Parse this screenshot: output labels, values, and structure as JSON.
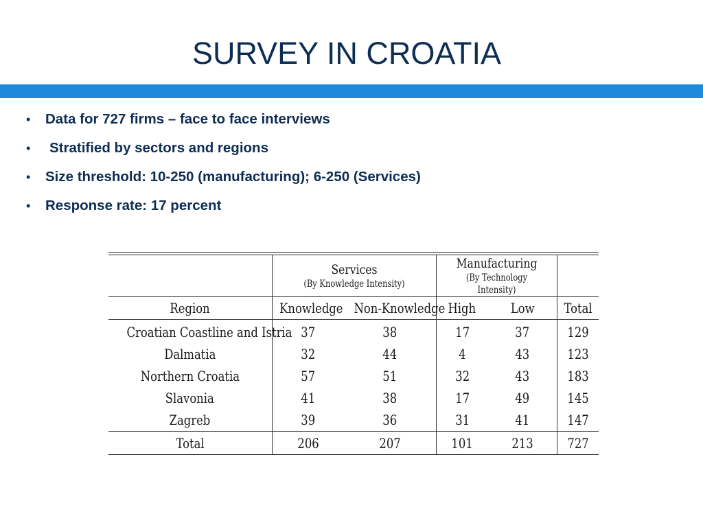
{
  "slide": {
    "title": "SURVEY IN CROATIA",
    "accent_color": "#1e8ad9",
    "title_color": "#0d2d54",
    "bullets": [
      "Data for 727 firms – face to face interviews",
      "Stratified by sectors and regions",
      "Size threshold: 10-250 (manufacturing); 6-250 (Services)",
      "Response rate: 17 percent"
    ]
  },
  "table": {
    "groups": {
      "services": {
        "name": "Services",
        "sub": "(By Knowledge Intensity)"
      },
      "manufacturing": {
        "name": "Manufacturing",
        "sub": "(By Technology Intensity)"
      }
    },
    "headers": [
      "Region",
      "Knowledge",
      "Non-Knowledge",
      "High",
      "Low",
      "Total"
    ],
    "rows": [
      {
        "region": "Croatian Coastline and Istria",
        "knowledge": "37",
        "non_knowledge": "38",
        "high": "17",
        "low": "37",
        "total": "129"
      },
      {
        "region": "Dalmatia",
        "knowledge": "32",
        "non_knowledge": "44",
        "high": "4",
        "low": "43",
        "total": "123"
      },
      {
        "region": "Northern Croatia",
        "knowledge": "57",
        "non_knowledge": "51",
        "high": "32",
        "low": "43",
        "total": "183"
      },
      {
        "region": "Slavonia",
        "knowledge": "41",
        "non_knowledge": "38",
        "high": "17",
        "low": "49",
        "total": "145"
      },
      {
        "region": "Zagreb",
        "knowledge": "39",
        "non_knowledge": "36",
        "high": "31",
        "low": "41",
        "total": "147"
      }
    ],
    "total_row": {
      "region": "Total",
      "knowledge": "206",
      "non_knowledge": "207",
      "high": "101",
      "low": "213",
      "total": "727"
    }
  }
}
